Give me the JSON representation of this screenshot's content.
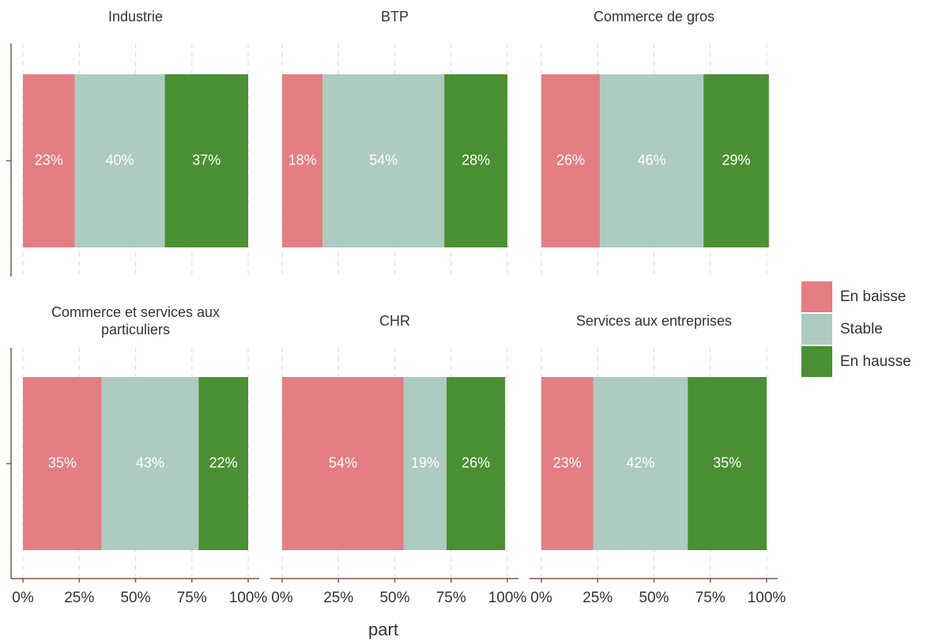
{
  "chart_data": {
    "type": "bar",
    "orientation": "horizontal",
    "stacked": true,
    "categories": [
      "Industrie",
      "BTP",
      "Commerce de gros",
      "Commerce et services aux particuliers",
      "CHR",
      "Services aux entreprises"
    ],
    "series": [
      {
        "name": "En baisse",
        "color": "#e57e83",
        "values": [
          23,
          18,
          26,
          35,
          54,
          23
        ],
        "value_labels": [
          "23%",
          "18%",
          "26%",
          "35%",
          "54%",
          "23%"
        ]
      },
      {
        "name": "Stable",
        "color": "#adcbc1",
        "values": [
          40,
          54,
          46,
          43,
          19,
          42
        ],
        "value_labels": [
          "40%",
          "54%",
          "46%",
          "43%",
          "19%",
          "42%"
        ]
      },
      {
        "name": "En hausse",
        "color": "#4a8f31",
        "values": [
          37,
          28,
          29,
          22,
          26,
          35
        ],
        "value_labels": [
          "37%",
          "28%",
          "29%",
          "22%",
          "26%",
          "35%"
        ]
      }
    ],
    "xlabel": "part",
    "xlim": [
      0,
      100
    ],
    "xticks": [
      {
        "value": 0,
        "label": "0%"
      },
      {
        "value": 25,
        "label": "25%"
      },
      {
        "value": 50,
        "label": "50%"
      },
      {
        "value": 75,
        "label": "75%"
      },
      {
        "value": 100,
        "label": "100%"
      }
    ],
    "grid": true,
    "legend": "right"
  }
}
